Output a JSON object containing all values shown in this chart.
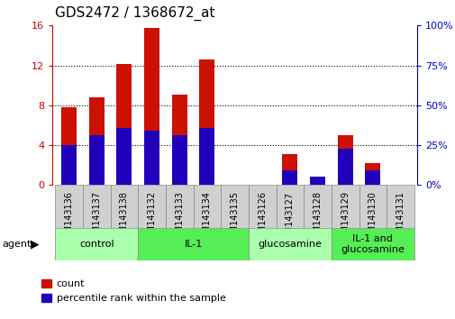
{
  "title": "GDS2472 / 1368672_at",
  "samples": [
    "GSM143136",
    "GSM143137",
    "GSM143138",
    "GSM143132",
    "GSM143133",
    "GSM143134",
    "GSM143135",
    "GSM143126",
    "GSM143127",
    "GSM143128",
    "GSM143129",
    "GSM143130",
    "GSM143131"
  ],
  "count_values": [
    7.8,
    8.8,
    12.1,
    15.8,
    9.1,
    12.6,
    0.0,
    0.0,
    3.1,
    0.4,
    5.0,
    2.2,
    0.0
  ],
  "percentile_values": [
    25.0,
    31.0,
    36.0,
    34.0,
    31.0,
    36.0,
    0.0,
    0.0,
    9.0,
    5.0,
    23.0,
    9.0,
    0.0
  ],
  "groups": [
    {
      "label": "control",
      "start": 0,
      "end": 3,
      "color": "#aaffaa"
    },
    {
      "label": "IL-1",
      "start": 3,
      "end": 7,
      "color": "#55ee55"
    },
    {
      "label": "glucosamine",
      "start": 7,
      "end": 10,
      "color": "#aaffaa"
    },
    {
      "label": "IL-1 and\nglucosamine",
      "start": 10,
      "end": 13,
      "color": "#55ee55"
    }
  ],
  "ylim_left": [
    0,
    16
  ],
  "ylim_right": [
    0,
    100
  ],
  "yticks_left": [
    0,
    4,
    8,
    12,
    16
  ],
  "yticks_right": [
    0,
    25,
    50,
    75,
    100
  ],
  "left_axis_color": "#cc0000",
  "right_axis_color": "#0000cc",
  "bar_color_count": "#cc1100",
  "bar_color_pct": "#2200bb",
  "bar_width": 0.55,
  "legend_count": "count",
  "legend_pct": "percentile rank within the sample",
  "grid_color": "black",
  "grid_yticks": [
    4,
    8,
    12
  ],
  "tick_label_bg": "#cccccc",
  "tick_label_fontsize": 7,
  "title_fontsize": 11
}
